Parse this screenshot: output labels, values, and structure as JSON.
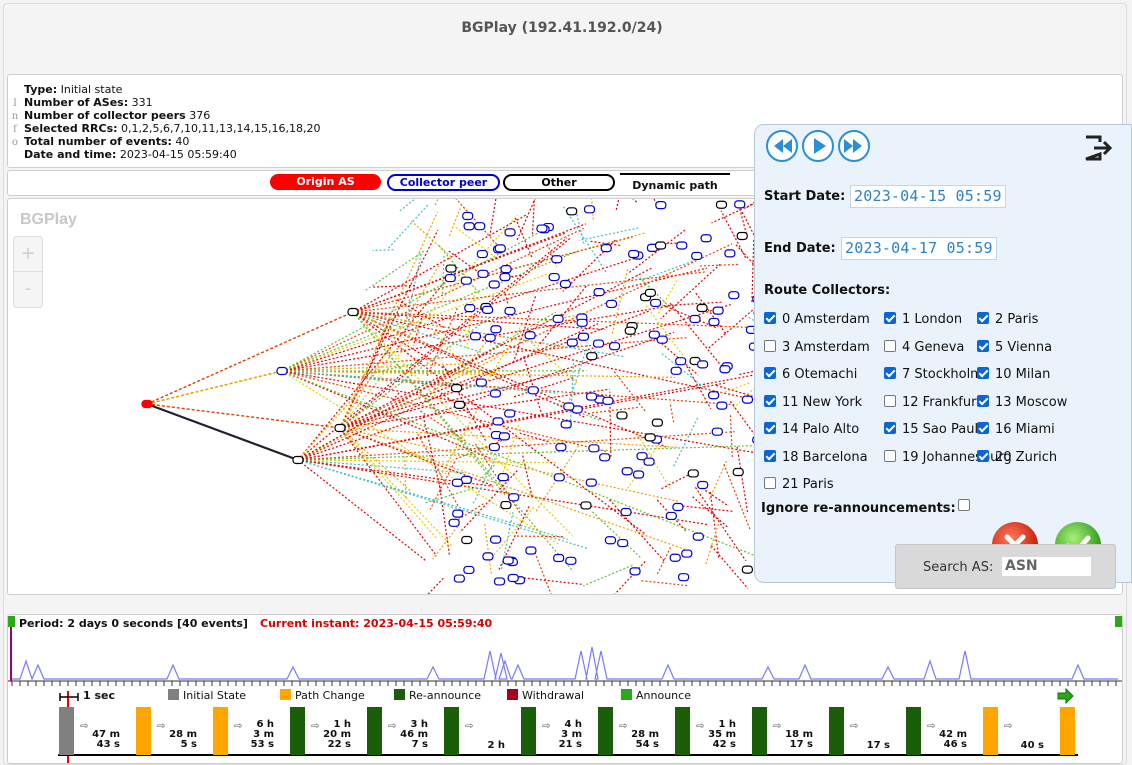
{
  "title": "BGPlay (192.41.192.0/24)",
  "info": {
    "side_letters": [
      "I",
      "n",
      "f",
      "o"
    ],
    "rows": [
      {
        "label": "Type:",
        "value": "Initial state"
      },
      {
        "label": "Number of ASes:",
        "value": "331"
      },
      {
        "label": "Number of collector peers",
        "value": "376"
      },
      {
        "label": "Selected RRCs:",
        "value": "0,1,2,5,6,7,10,11,13,14,15,16,18,20"
      },
      {
        "label": "Total number of events:",
        "value": "40"
      },
      {
        "label": "Date and time:",
        "value": "2023-04-15 05:59:40"
      }
    ]
  },
  "legend": {
    "origin": "Origin AS",
    "peer": "Collector peer",
    "other": "Other",
    "dynamic": "Dynamic path"
  },
  "graph": {
    "logo": "BGPlay",
    "zoom_in": "+",
    "zoom_out": "-"
  },
  "panel": {
    "start_label": "Start Date:",
    "start_value": "2023-04-15 05:59",
    "end_label": "End Date:",
    "end_value": "2023-04-17 05:59",
    "collectors_label": "Route Collectors:",
    "collectors": [
      {
        "label": "0 Amsterdam",
        "checked": true
      },
      {
        "label": "1 London",
        "checked": true
      },
      {
        "label": "2 Paris",
        "checked": true
      },
      {
        "label": "3 Amsterdam",
        "checked": false
      },
      {
        "label": "4 Geneva",
        "checked": false
      },
      {
        "label": "5 Vienna",
        "checked": true
      },
      {
        "label": "6 Otemachi",
        "checked": true
      },
      {
        "label": "7 Stockholm",
        "checked": true
      },
      {
        "label": "10 Milan",
        "checked": true
      },
      {
        "label": "11 New York",
        "checked": true
      },
      {
        "label": "12 Frankfurt",
        "checked": false
      },
      {
        "label": "13 Moscow",
        "checked": true
      },
      {
        "label": "14 Palo Alto",
        "checked": true
      },
      {
        "label": "15 Sao Paulo",
        "checked": true
      },
      {
        "label": "16 Miami",
        "checked": true
      },
      {
        "label": "18 Barcelona",
        "checked": true
      },
      {
        "label": "19 Johannesburg",
        "checked": false
      },
      {
        "label": "20 Zurich",
        "checked": true
      },
      {
        "label": "21 Paris",
        "checked": false
      }
    ],
    "ignore_label": "Ignore re-announcements:",
    "ignore_checked": false
  },
  "search": {
    "label": "Search AS:",
    "value": "ASN"
  },
  "timeline": {
    "period": "Period: 2 days 0 seconds [40 events]",
    "instant": "Current instant: 2023-04-15 05:59:40",
    "scale": "1 sec",
    "legend": [
      {
        "label": "Initial State",
        "color": "#808080"
      },
      {
        "label": "Path Change",
        "color": "#ffa500"
      },
      {
        "label": "Re-announce",
        "color": "#1a5e0a"
      },
      {
        "label": "Withdrawal",
        "color": "#a50021"
      },
      {
        "label": "Announce",
        "color": "#2aa81a"
      }
    ],
    "events": [
      {
        "type": "Initial State"
      },
      {
        "type": "Path Change"
      },
      {
        "type": "Path Change"
      },
      {
        "type": "Re-announce"
      },
      {
        "type": "Re-announce"
      },
      {
        "type": "Re-announce"
      },
      {
        "type": "Re-announce"
      },
      {
        "type": "Re-announce"
      },
      {
        "type": "Re-announce"
      },
      {
        "type": "Re-announce"
      },
      {
        "type": "Re-announce"
      },
      {
        "type": "Re-announce"
      },
      {
        "type": "Re-announce"
      },
      {
        "type": "Path Change"
      },
      {
        "type": "Path Change"
      }
    ],
    "durations": [
      [
        "47 m",
        "43 s"
      ],
      [
        "28 m",
        "5 s"
      ],
      [
        "6 h",
        "3 m",
        "53 s"
      ],
      [
        "1 h",
        "20 m",
        "22 s"
      ],
      [
        "3 h",
        "46 m",
        "7 s"
      ],
      [
        "2 h"
      ],
      [
        "4 h",
        "3 m",
        "21 s"
      ],
      [
        "28 m",
        "54 s"
      ],
      [
        "1 h",
        "35 m",
        "42 s"
      ],
      [
        "18 m",
        "17 s"
      ],
      [
        "17 s"
      ],
      [
        "42 m",
        "46 s"
      ],
      [
        "40 s"
      ]
    ]
  }
}
